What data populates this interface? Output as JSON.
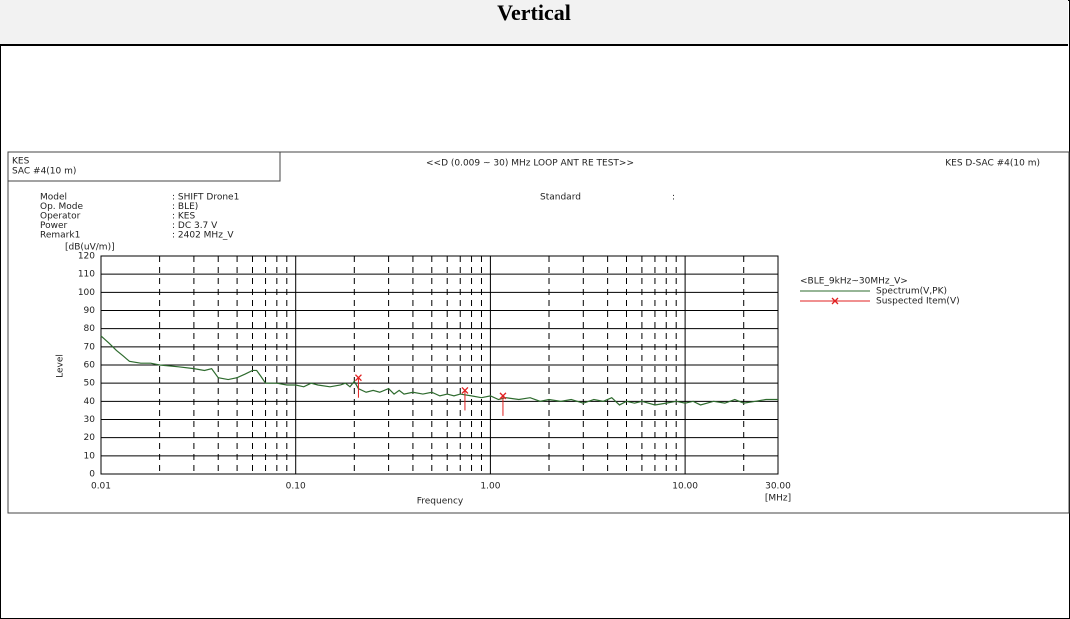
{
  "header": {
    "title": "Vertical"
  },
  "chart_header": {
    "left": [
      "KES",
      "SAC #4(10 m)"
    ],
    "right": "KES D-SAC #4(10 m)"
  },
  "info": {
    "rows": [
      [
        "Model",
        ": SHIFT Drone1"
      ],
      [
        "Op. Mode",
        ": BLE)"
      ],
      [
        "Operator",
        ": KES"
      ],
      [
        "Power",
        ": DC 3.7 V"
      ],
      [
        "Remark1",
        ": 2402 MHz_V"
      ]
    ],
    "standard": [
      "Standard",
      ":"
    ]
  },
  "chart_data": {
    "type": "line",
    "title": "<<D (0.009 ~ 30) MHz LOOP ANT RE TEST>>",
    "x_label": "Frequency",
    "x_unit": "[MHz]",
    "y_label": "Level",
    "y_unit": "[dB(uV/m)]",
    "xscale": "log",
    "xlim": [
      0.01,
      30
    ],
    "xticks": [
      {
        "value": 0.01,
        "label": "0.01"
      },
      {
        "value": 0.1,
        "label": "0.10"
      },
      {
        "value": 1,
        "label": "1.00"
      },
      {
        "value": 10,
        "label": "10.00"
      },
      {
        "value": 30,
        "label": "30.00"
      }
    ],
    "x_minor_grid": [
      0.02,
      0.03,
      0.04,
      0.05,
      0.06,
      0.07,
      0.08,
      0.09,
      0.2,
      0.3,
      0.4,
      0.5,
      0.6,
      0.7,
      0.8,
      0.9,
      2,
      3,
      4,
      5,
      6,
      7,
      8,
      9,
      20
    ],
    "ylim": [
      0,
      120
    ],
    "yticks": [
      0,
      10,
      20,
      30,
      40,
      50,
      60,
      70,
      80,
      90,
      100,
      110,
      120
    ],
    "grid": true,
    "legend_title": "<BLE_9kHz~30MHz_V>",
    "series": [
      {
        "name": "Spectrum(V,PK)",
        "color": "#2e6b2e",
        "marker": "none",
        "x": [
          0.01,
          0.011,
          0.012,
          0.013,
          0.014,
          0.016,
          0.018,
          0.02,
          0.025,
          0.03,
          0.034,
          0.037,
          0.04,
          0.045,
          0.05,
          0.055,
          0.06,
          0.063,
          0.066,
          0.07,
          0.08,
          0.09,
          0.1,
          0.11,
          0.12,
          0.13,
          0.15,
          0.17,
          0.18,
          0.19,
          0.2,
          0.21,
          0.23,
          0.25,
          0.27,
          0.3,
          0.32,
          0.34,
          0.36,
          0.4,
          0.45,
          0.5,
          0.55,
          0.6,
          0.65,
          0.7,
          0.8,
          0.9,
          1,
          1.1,
          1.2,
          1.4,
          1.6,
          1.8,
          2,
          2.3,
          2.6,
          3,
          3.4,
          3.8,
          4.2,
          4.6,
          5,
          5.5,
          6,
          7,
          8,
          9,
          10,
          11,
          12,
          14,
          16,
          18,
          20,
          23,
          26,
          30
        ],
        "values": [
          76,
          72,
          68,
          65,
          62,
          61,
          61,
          60,
          59,
          58,
          57,
          58,
          53,
          52,
          53,
          55,
          57,
          57,
          54,
          50,
          50,
          49,
          49,
          48,
          50,
          49,
          48,
          49,
          50,
          48,
          51,
          47,
          45,
          46,
          45,
          47,
          44,
          46,
          44,
          45,
          44,
          45,
          43,
          44,
          43,
          44,
          43,
          42,
          43,
          41,
          42,
          41,
          42,
          40,
          41,
          40,
          41,
          39,
          41,
          40,
          42,
          38,
          40,
          39,
          40,
          38,
          39,
          40,
          39,
          40,
          38,
          40,
          39,
          41,
          39,
          40,
          41,
          41
        ]
      },
      {
        "name": "Suspected Item(V)",
        "color": "#e02020",
        "marker": "x",
        "x": [
          0.21,
          0.74,
          1.16
        ],
        "values": [
          53,
          46,
          43
        ]
      }
    ]
  }
}
